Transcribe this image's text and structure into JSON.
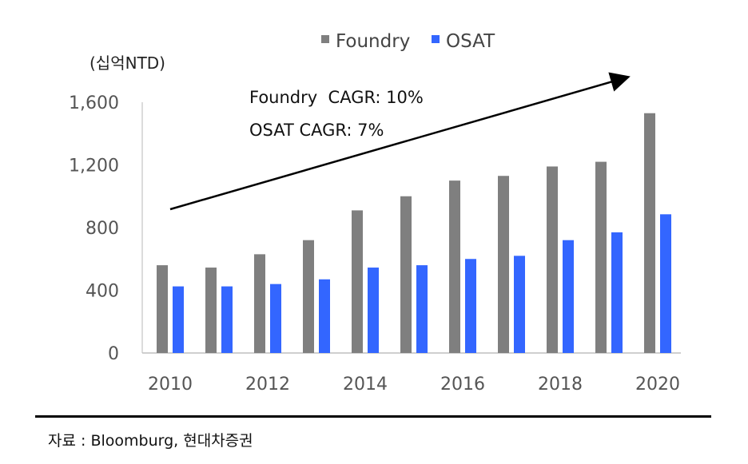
{
  "chart_data": {
    "type": "bar",
    "unit_label": "(십억NTD)",
    "categories": [
      "2010",
      "2011",
      "2012",
      "2013",
      "2014",
      "2015",
      "2016",
      "2017",
      "2018",
      "2019",
      "2020"
    ],
    "x_tick_labels": [
      "2010",
      "2012",
      "2014",
      "2016",
      "2018",
      "2020"
    ],
    "series": [
      {
        "name": "Foundry",
        "color": "#7f7f7f",
        "values": [
          560,
          545,
          630,
          720,
          910,
          1000,
          1100,
          1130,
          1190,
          1220,
          1530
        ]
      },
      {
        "name": "OSAT",
        "color": "#3366ff",
        "values": [
          425,
          425,
          440,
          470,
          545,
          560,
          600,
          620,
          720,
          770,
          885
        ]
      }
    ],
    "ylim": [
      0,
      1600
    ],
    "y_ticks": [
      0,
      400,
      800,
      1200,
      1600
    ],
    "y_tick_labels": [
      "0",
      "400",
      "800",
      "1,200",
      "1,600"
    ],
    "annotations": [
      "Foundry  CAGR: 10%",
      "OSAT CAGR: 7%"
    ],
    "legend_position": "top-center",
    "grid": false
  },
  "source": "자료 : Bloomburg, 현대차증권"
}
